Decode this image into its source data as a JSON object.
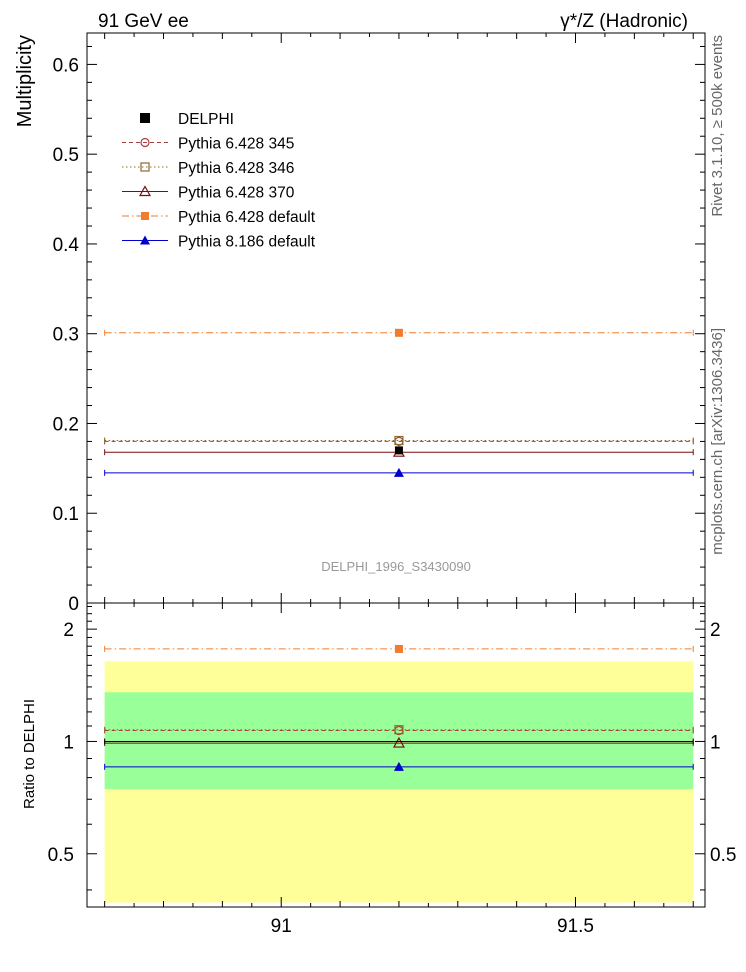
{
  "header": {
    "left_title": "91 GeV ee",
    "right_title": "γ*/Z (Hadronic)"
  },
  "side_labels": {
    "rivet": "Rivet 3.1.10, ≥ 500k events",
    "mcplots": "mcplots.cern.ch [arXiv:1306.3436]"
  },
  "watermark": "DELPHI_1996_S3430090",
  "colors": {
    "delphi": "#000000",
    "p345": "#a83d3d",
    "p346": "#8b6a2b",
    "p370": "#7a0e0e",
    "p6def": "#ef7d2d",
    "p8def": "#0000cc",
    "band_outer": "#ffff99",
    "band_inner": "#99ff99"
  },
  "chart_data": [
    {
      "type": "scatter",
      "title": "Multiplicity",
      "ylabel": "Multiplicity",
      "xlabel": "",
      "xlim": [
        90.67,
        91.72
      ],
      "ylim": [
        0,
        0.635
      ],
      "yticks": [
        0,
        0.1,
        0.2,
        0.3,
        0.4,
        0.5,
        0.6
      ],
      "yticklabels": [
        "0",
        "0.1",
        "0.2",
        "0.3",
        "0.4",
        "0.5",
        "0.6"
      ],
      "x_bin": [
        90.7,
        91.7
      ],
      "x_center": 91.2,
      "legend_position": "top-left",
      "series": [
        {
          "key": "delphi",
          "name": "DELPHI",
          "value": 0.17,
          "marker": "square-filled",
          "line": "none"
        },
        {
          "key": "p345",
          "name": "Pythia 6.428 345",
          "value": 0.18,
          "marker": "circle-open",
          "line": "dashed"
        },
        {
          "key": "p346",
          "name": "Pythia 6.428 346",
          "value": 0.181,
          "marker": "square-open",
          "line": "dotted"
        },
        {
          "key": "p370",
          "name": "Pythia 6.428 370",
          "value": 0.168,
          "marker": "triangle-open",
          "line": "solid"
        },
        {
          "key": "p6def",
          "name": "Pythia 6.428 default",
          "value": 0.301,
          "marker": "square-filled",
          "line": "dashdot"
        },
        {
          "key": "p8def",
          "name": "Pythia 8.186 default",
          "value": 0.145,
          "marker": "triangle-filled",
          "line": "solid"
        }
      ]
    },
    {
      "type": "scatter",
      "title": "Ratio to DELPHI",
      "ylabel": "Ratio to DELPHI",
      "xlabel": "",
      "yscale": "log",
      "xlim": [
        90.67,
        91.72
      ],
      "ylim": [
        0.36,
        2.35
      ],
      "xticks": [
        91,
        91.5
      ],
      "xticklabels": [
        "91",
        "91.5"
      ],
      "yticks": [
        0.5,
        1,
        2
      ],
      "yticklabels": [
        "0.5",
        "1",
        "2"
      ],
      "bands": {
        "outer": [
          0.37,
          1.64
        ],
        "inner": [
          0.745,
          1.355
        ]
      },
      "series": [
        {
          "key": "delphi",
          "name": "DELPHI",
          "value": 1.0,
          "marker": "none",
          "line": "solid"
        },
        {
          "key": "p345",
          "name": "Pythia 6.428 345",
          "value": 1.07,
          "marker": "circle-open",
          "line": "dashed"
        },
        {
          "key": "p346",
          "name": "Pythia 6.428 346",
          "value": 1.075,
          "marker": "square-open",
          "line": "dotted"
        },
        {
          "key": "p370",
          "name": "Pythia 6.428 370",
          "value": 0.99,
          "marker": "triangle-open",
          "line": "solid"
        },
        {
          "key": "p6def",
          "name": "Pythia 6.428 default",
          "value": 1.77,
          "marker": "square-filled",
          "line": "dashdot"
        },
        {
          "key": "p8def",
          "name": "Pythia 8.186 default",
          "value": 0.855,
          "marker": "triangle-filled",
          "line": "solid"
        }
      ]
    }
  ]
}
